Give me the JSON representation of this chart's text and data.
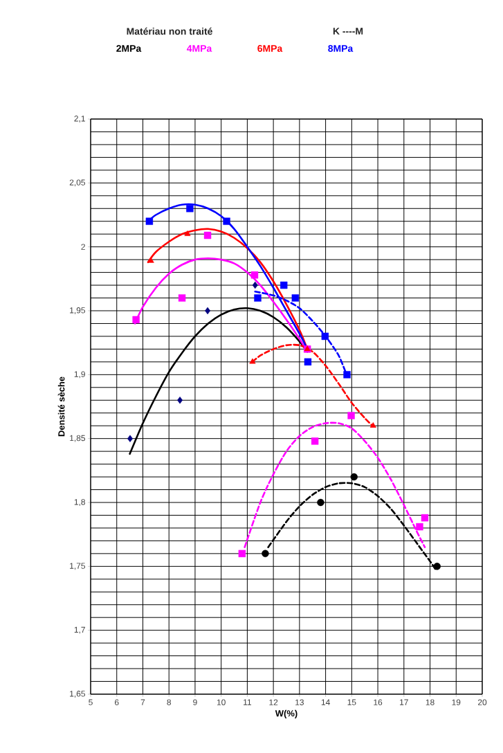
{
  "chart_data": {
    "type": "scatter",
    "title": "Matériau  non traité",
    "annotations": [
      "K ----M"
    ],
    "xlabel": "W(%)",
    "ylabel": "Densité sèche",
    "xlim": [
      5,
      20
    ],
    "xticks": [
      5,
      6,
      7,
      8,
      9,
      10,
      11,
      12,
      13,
      14,
      15,
      16,
      17,
      18,
      19,
      20
    ],
    "ylim": [
      1.65,
      2.1
    ],
    "yticks": [
      {
        "value": 1.65,
        "label": "1,65"
      },
      {
        "value": 1.7,
        "label": "1,7"
      },
      {
        "value": 1.75,
        "label": "1,75"
      },
      {
        "value": 1.8,
        "label": "1,8"
      },
      {
        "value": 1.85,
        "label": "1,85"
      },
      {
        "value": 1.9,
        "label": "1,9"
      },
      {
        "value": 1.95,
        "label": "1,95"
      },
      {
        "value": 2,
        "label": "2"
      },
      {
        "value": 2.05,
        "label": "2,05"
      },
      {
        "value": 2.1,
        "label": "2,1"
      }
    ],
    "grid": true,
    "legend": "top",
    "series": [
      {
        "name": "2MPa",
        "type": "line",
        "color": "#000000",
        "line_style": "solid",
        "marker": "none",
        "x": [
          6.5,
          7,
          7.5,
          8,
          8.5,
          9,
          9.5,
          10,
          10.5,
          11,
          11.5,
          12,
          12.5,
          13,
          13.3
        ],
        "values": [
          1.838,
          1.862,
          1.883,
          1.902,
          1.917,
          1.93,
          1.94,
          1.947,
          1.951,
          1.952,
          1.95,
          1.945,
          1.937,
          1.926,
          1.918
        ]
      },
      {
        "name": "4MPa",
        "type": "line",
        "color": "#ff00ff",
        "line_style": "solid",
        "marker": "none",
        "x": [
          6.7,
          7,
          7.5,
          8,
          8.5,
          9,
          9.5,
          10,
          10.5,
          11,
          11.5,
          12,
          12.5,
          13,
          13.3
        ],
        "values": [
          1.94,
          1.953,
          1.968,
          1.979,
          1.986,
          1.99,
          1.991,
          1.99,
          1.987,
          1.98,
          1.97,
          1.957,
          1.943,
          1.928,
          1.918
        ]
      },
      {
        "name": "6MPa",
        "type": "line",
        "color": "#ff0000",
        "line_style": "solid",
        "marker": "none",
        "x": [
          7.2,
          7.5,
          8,
          8.5,
          9,
          9.5,
          10,
          10.5,
          11,
          11.5,
          12,
          12.5,
          13,
          13.3
        ],
        "values": [
          1.988,
          1.996,
          2.004,
          2.01,
          2.013,
          2.014,
          2.012,
          2.007,
          1.999,
          1.988,
          1.973,
          1.955,
          1.935,
          1.92
        ]
      },
      {
        "name": "8MPa",
        "type": "line",
        "color": "#0000ff",
        "line_style": "solid",
        "marker": "none",
        "x": [
          7.2,
          7.5,
          8,
          8.5,
          9,
          9.5,
          10,
          10.5,
          11,
          11.5,
          12,
          12.5,
          13,
          13.3
        ],
        "values": [
          2.02,
          2.025,
          2.03,
          2.033,
          2.033,
          2.03,
          2.024,
          2.014,
          2.0,
          1.985,
          1.968,
          1.95,
          1.932,
          1.92
        ]
      },
      {
        "type": "line",
        "color": "#000000",
        "line_style": "dashed",
        "marker": "none",
        "x": [
          11.8,
          12.5,
          13,
          13.5,
          14,
          14.5,
          15,
          15.5,
          16,
          16.5,
          17,
          17.5,
          18,
          18.2
        ],
        "values": [
          1.765,
          1.785,
          1.797,
          1.806,
          1.812,
          1.815,
          1.815,
          1.812,
          1.805,
          1.795,
          1.782,
          1.768,
          1.754,
          1.748
        ]
      },
      {
        "type": "line",
        "color": "#ff00ff",
        "line_style": "dashed",
        "marker": "none",
        "x": [
          10.9,
          11.5,
          12,
          12.5,
          13,
          13.5,
          14,
          14.5,
          15,
          15.5,
          16,
          16.5,
          17,
          17.5,
          17.8
        ],
        "values": [
          1.765,
          1.8,
          1.822,
          1.84,
          1.852,
          1.859,
          1.862,
          1.862,
          1.858,
          1.848,
          1.835,
          1.818,
          1.798,
          1.777,
          1.765
        ]
      },
      {
        "type": "line",
        "color": "#ff0000",
        "line_style": "dashed",
        "marker": "none",
        "x": [
          11.2,
          11.5,
          12,
          12.5,
          13,
          13.5,
          14,
          14.5,
          15,
          15.5,
          15.8
        ],
        "values": [
          1.91,
          1.915,
          1.92,
          1.923,
          1.923,
          1.918,
          1.907,
          1.893,
          1.878,
          1.866,
          1.86
        ]
      },
      {
        "type": "line",
        "color": "#0000ff",
        "line_style": "dashed",
        "marker": "none",
        "x": [
          11.3,
          12,
          12.5,
          13,
          13.5,
          14,
          14.5,
          14.8
        ],
        "values": [
          1.965,
          1.962,
          1.958,
          1.952,
          1.942,
          1.93,
          1.915,
          1.9
        ]
      },
      {
        "color": "#000080",
        "marker": "diamond",
        "x": [
          6.51,
          8.42,
          9.48,
          11.3
        ],
        "values": [
          1.85,
          1.88,
          1.95,
          1.97
        ]
      },
      {
        "color": "#ff00ff",
        "marker": "square",
        "x": [
          6.74,
          8.5,
          9.48,
          11.28,
          13.3
        ],
        "values": [
          1.943,
          1.96,
          2.009,
          1.978,
          1.92
        ]
      },
      {
        "color": "#ff0000",
        "marker": "triangle",
        "x": [
          7.31,
          8.71,
          13.3
        ],
        "values": [
          1.989,
          2.01,
          1.92
        ]
      },
      {
        "color": "#0000ff",
        "marker": "square",
        "x": [
          7.25,
          8.8,
          10.21,
          12.4,
          13.32
        ],
        "values": [
          2.02,
          2.03,
          2.02,
          1.97,
          1.91
        ]
      },
      {
        "color": "#000000",
        "marker": "circle",
        "x": [
          11.69,
          13.81,
          15.09,
          18.27
        ],
        "values": [
          1.76,
          1.8,
          1.82,
          1.75
        ]
      },
      {
        "color": "#ff00ff",
        "marker": "square",
        "x": [
          10.8,
          13.59,
          14.98,
          17.6,
          17.8
        ],
        "values": [
          1.76,
          1.848,
          1.868,
          1.781,
          1.788
        ]
      },
      {
        "color": "#ff0000",
        "marker": "triangle",
        "x": [
          11.2,
          15.82
        ],
        "values": [
          1.91,
          1.86
        ]
      },
      {
        "color": "#0000ff",
        "marker": "square",
        "x": [
          11.4,
          12.84,
          13.98,
          14.82
        ],
        "values": [
          1.96,
          1.96,
          1.93,
          1.9
        ]
      }
    ]
  }
}
